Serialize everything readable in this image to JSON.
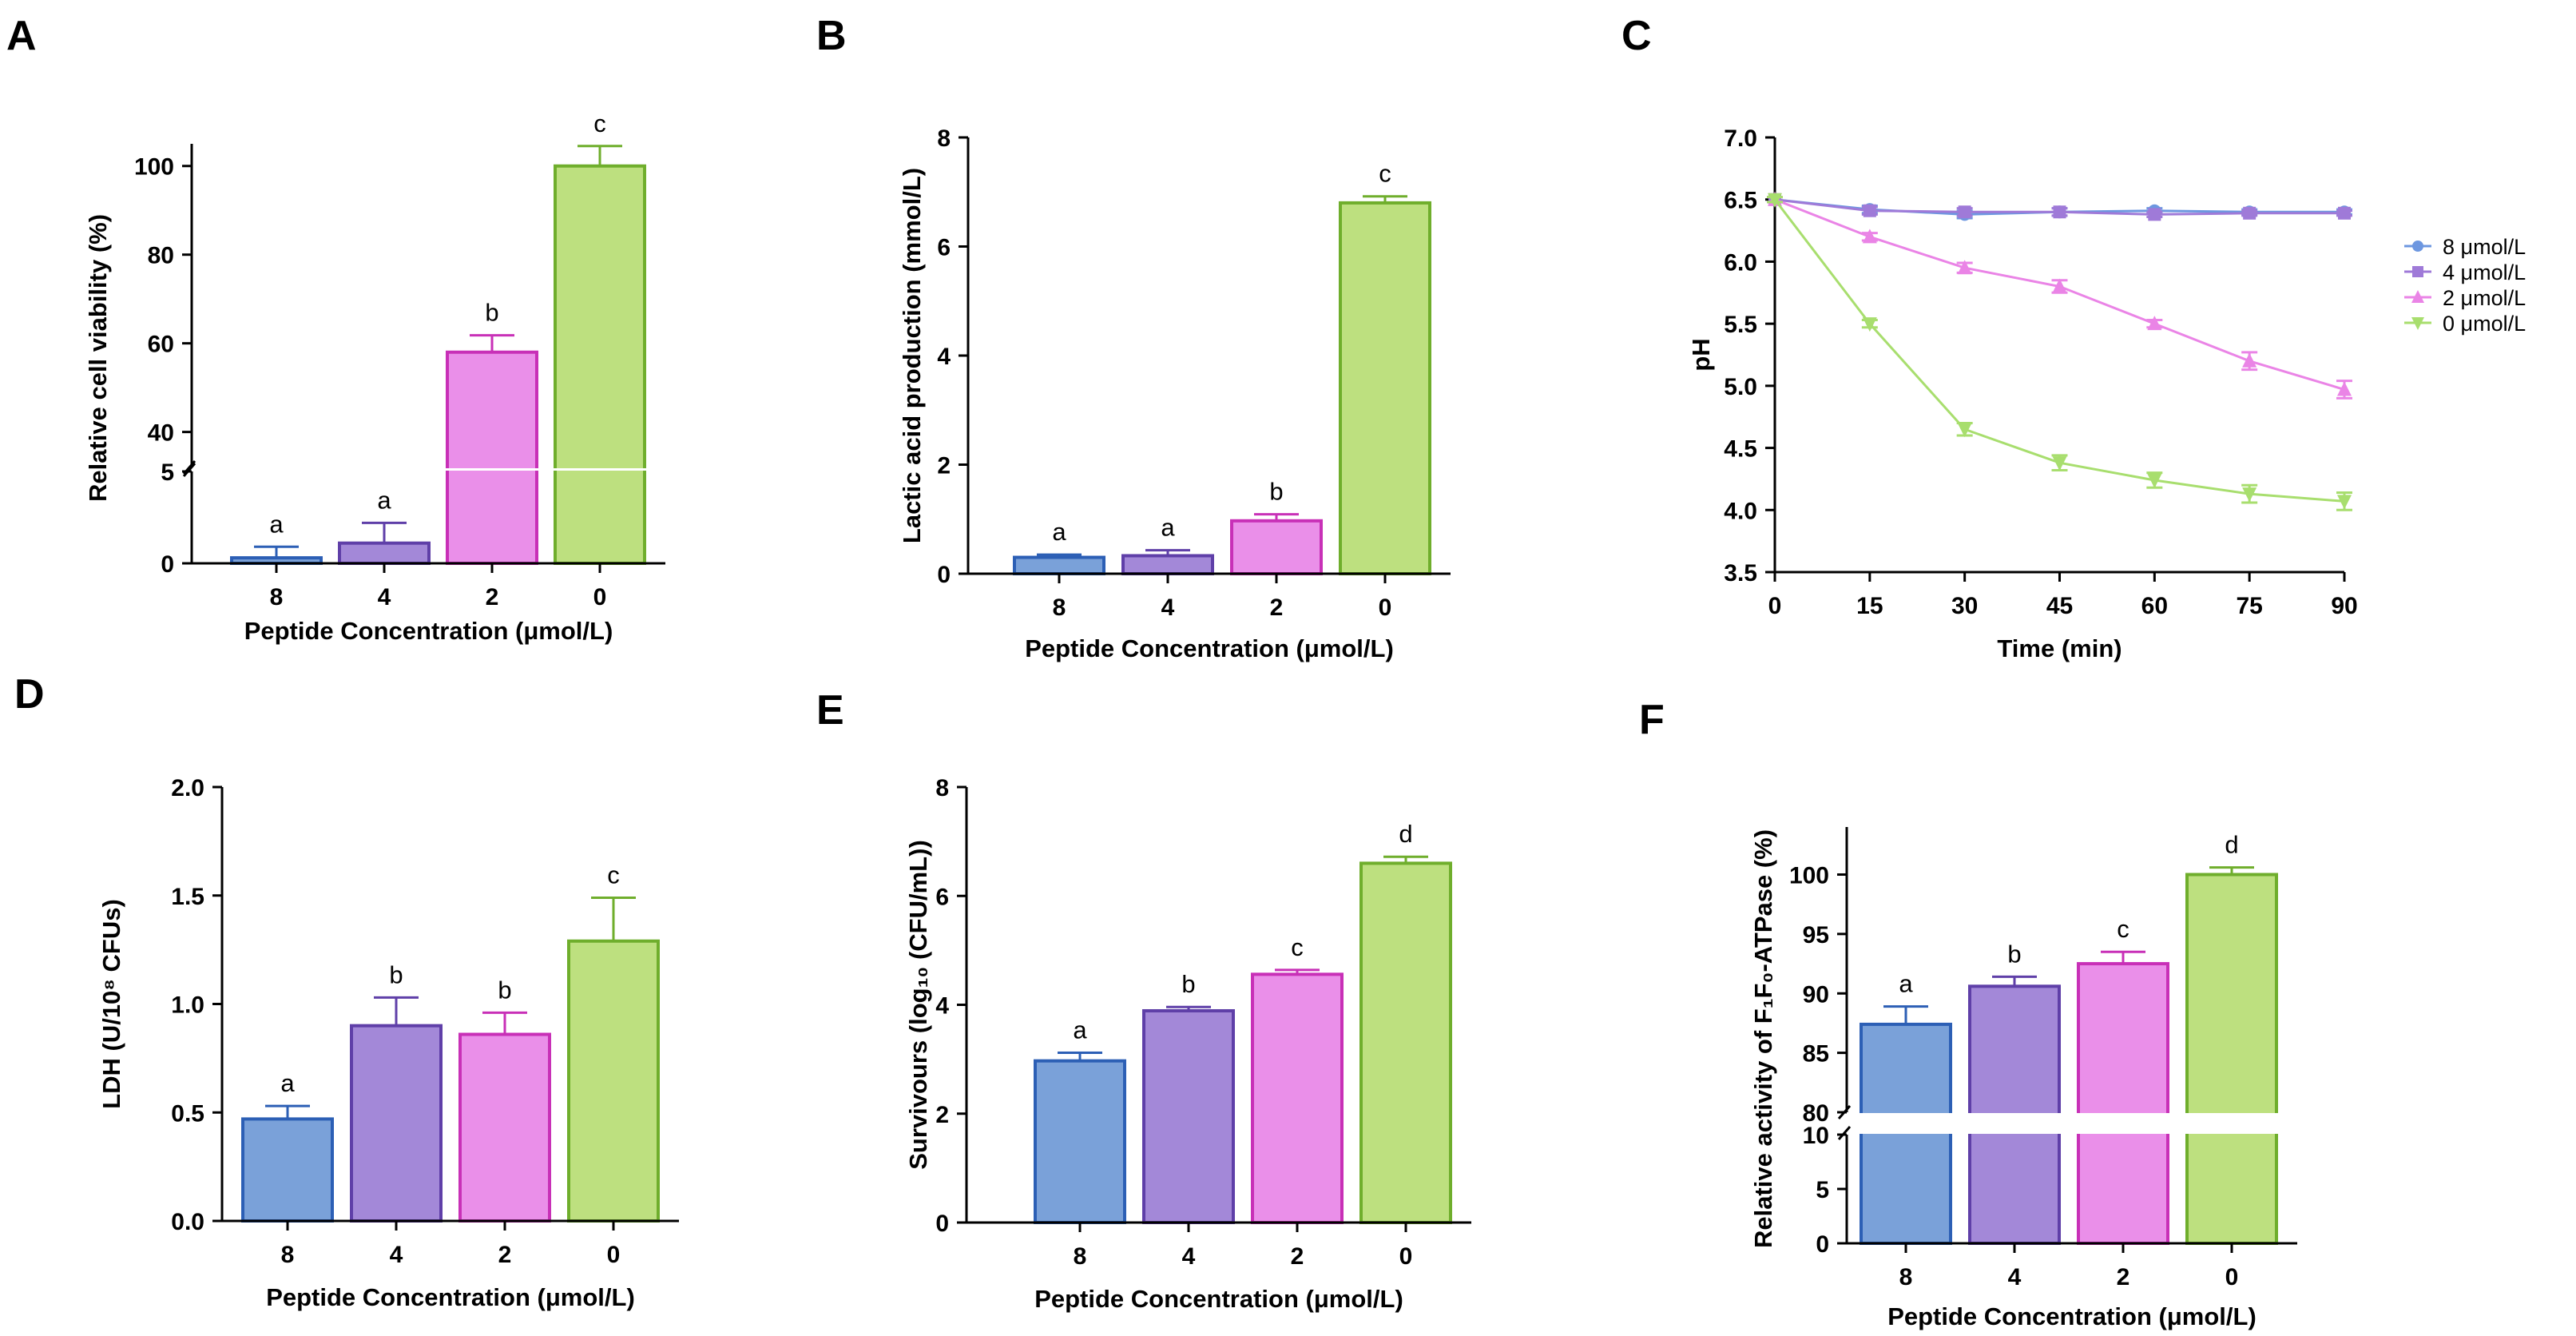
{
  "chart_data": [
    {
      "id": "A",
      "type": "bar",
      "categories": [
        "8",
        "4",
        "2",
        "0"
      ],
      "values": [
        0.3,
        1.1,
        58,
        100
      ],
      "errors": [
        0.6,
        1.1,
        3.8,
        4.5
      ],
      "letters": [
        "a",
        "a",
        "b",
        "c"
      ],
      "colors": [
        "#7aa1d9",
        "#a388d8",
        "#ea8fe9",
        "#bde07f"
      ],
      "strokes": [
        "#2c5fb5",
        "#5f3fa8",
        "#c830b7",
        "#6fae2c"
      ],
      "xlabel": "Peptide Concentration (μmol/L)",
      "ylabel": "Relative cell viability (%)",
      "broken_axis": {
        "lower": [
          0,
          5
        ],
        "upper": [
          32,
          105
        ]
      },
      "lower_ticks": [
        0,
        5
      ],
      "upper_ticks": [
        40,
        60,
        80,
        100
      ]
    },
    {
      "id": "B",
      "type": "bar",
      "categories": [
        "8",
        "4",
        "2",
        "0"
      ],
      "values": [
        0.3,
        0.33,
        0.97,
        6.8
      ],
      "errors": [
        0.05,
        0.1,
        0.12,
        0.12
      ],
      "letters": [
        "a",
        "a",
        "b",
        "c"
      ],
      "colors": [
        "#7aa1d9",
        "#a388d8",
        "#ea8fe9",
        "#bde07f"
      ],
      "strokes": [
        "#2c5fb5",
        "#5f3fa8",
        "#c830b7",
        "#6fae2c"
      ],
      "xlabel": "Peptide Concentration (μmol/L)",
      "ylabel": "Lactic acid production (mmol/L)",
      "ylim": [
        0,
        8
      ],
      "ticks": [
        0,
        2,
        4,
        6,
        8
      ]
    },
    {
      "id": "C",
      "type": "line",
      "x": [
        0,
        15,
        30,
        45,
        60,
        75,
        90
      ],
      "series": [
        {
          "name": "8 μmol/L",
          "values": [
            6.5,
            6.42,
            6.38,
            6.4,
            6.41,
            6.4,
            6.4
          ],
          "errors": [
            0.02,
            0.03,
            0.03,
            0.03,
            0.02,
            0.02,
            0.02
          ],
          "color": "#6d97e0",
          "marker": "circle"
        },
        {
          "name": "4 μmol/L",
          "values": [
            6.5,
            6.41,
            6.4,
            6.4,
            6.38,
            6.39,
            6.39
          ],
          "errors": [
            0.02,
            0.03,
            0.03,
            0.03,
            0.02,
            0.02,
            0.02
          ],
          "color": "#9f7ad8",
          "marker": "square"
        },
        {
          "name": "2 μmol/L",
          "values": [
            6.5,
            6.2,
            5.95,
            5.8,
            5.5,
            5.2,
            4.97
          ],
          "errors": [
            0.02,
            0.03,
            0.04,
            0.05,
            0.03,
            0.07,
            0.07
          ],
          "color": "#ea84e6",
          "marker": "triangle-up"
        },
        {
          "name": "0 μmol/L",
          "values": [
            6.5,
            5.5,
            4.65,
            4.38,
            4.24,
            4.13,
            4.07
          ],
          "errors": [
            0.02,
            0.03,
            0.05,
            0.06,
            0.06,
            0.07,
            0.07
          ],
          "color": "#a8de6e",
          "marker": "triangle-down"
        }
      ],
      "xlabel": "Time (min)",
      "ylabel": "pH",
      "xlim": [
        0,
        90
      ],
      "ylim": [
        3.5,
        7.0
      ],
      "xticks": [
        0,
        15,
        30,
        45,
        60,
        75,
        90
      ],
      "yticks": [
        "3.5",
        "4.0",
        "4.5",
        "5.0",
        "5.5",
        "6.0",
        "6.5",
        "7.0"
      ],
      "legend_position": "right"
    },
    {
      "id": "D",
      "type": "bar",
      "categories": [
        "8",
        "4",
        "2",
        "0"
      ],
      "values": [
        0.47,
        0.9,
        0.86,
        1.29
      ],
      "errors": [
        0.06,
        0.13,
        0.1,
        0.2
      ],
      "letters": [
        "a",
        "b",
        "b",
        "c"
      ],
      "colors": [
        "#7aa1d9",
        "#a388d8",
        "#ea8fe9",
        "#bde07f"
      ],
      "strokes": [
        "#2c5fb5",
        "#5f3fa8",
        "#c830b7",
        "#6fae2c"
      ],
      "xlabel": "Peptide Concentration (μmol/L)",
      "ylabel": "LDH (U/10⁸ CFUs)",
      "ylim": [
        0,
        2
      ],
      "ticks": [
        "0.0",
        "0.5",
        "1.0",
        "1.5",
        "2.0"
      ]
    },
    {
      "id": "E",
      "type": "bar",
      "categories": [
        "8",
        "4",
        "2",
        "0"
      ],
      "values": [
        2.97,
        3.89,
        4.56,
        6.6
      ],
      "errors": [
        0.15,
        0.07,
        0.08,
        0.12
      ],
      "letters": [
        "a",
        "b",
        "c",
        "d"
      ],
      "colors": [
        "#7aa1d9",
        "#a388d8",
        "#ea8fe9",
        "#bde07f"
      ],
      "strokes": [
        "#2c5fb5",
        "#5f3fa8",
        "#c830b7",
        "#6fae2c"
      ],
      "xlabel": "Peptide Concentration (μmol/L)",
      "ylabel": "Survivours (log₁₀ (CFU/mL))",
      "ylim": [
        0,
        8
      ],
      "ticks": [
        0,
        2,
        4,
        6,
        8
      ]
    },
    {
      "id": "F",
      "type": "bar",
      "categories": [
        "8",
        "4",
        "2",
        "0"
      ],
      "values": [
        87.4,
        90.6,
        92.5,
        100
      ],
      "errors": [
        1.5,
        0.8,
        1.0,
        0.6
      ],
      "letters": [
        "a",
        "b",
        "c",
        "d"
      ],
      "colors": [
        "#7aa1d9",
        "#a388d8",
        "#ea8fe9",
        "#bde07f"
      ],
      "strokes": [
        "#2c5fb5",
        "#5f3fa8",
        "#c830b7",
        "#6fae2c"
      ],
      "xlabel": "Peptide Concentration (μmol/L)",
      "ylabel": "Relative activity of F₁F₀-ATPase (%)",
      "broken_axis": {
        "lower": [
          0,
          10
        ],
        "upper": [
          80,
          104
        ]
      },
      "lower_ticks": [
        0,
        5,
        10
      ],
      "upper_ticks": [
        80,
        85,
        90,
        95,
        100
      ]
    }
  ]
}
